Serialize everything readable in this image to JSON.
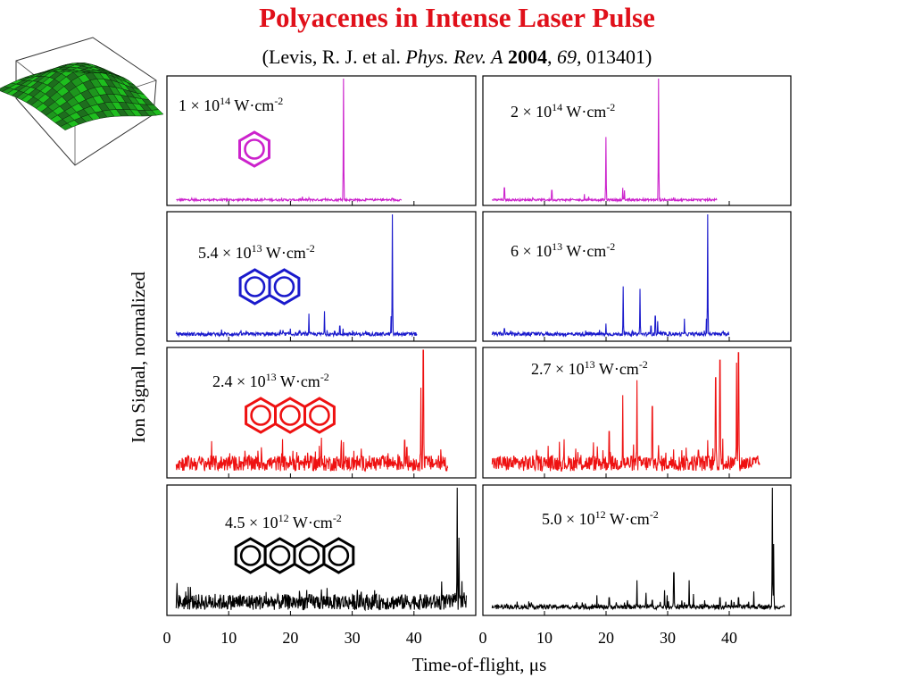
{
  "slide": {
    "title": "Polyacenes in Intense Laser Pulse",
    "citation": {
      "open": "(Levis, R. J. et al. ",
      "journal": "Phys. Rev. A",
      "year": "2004",
      "sep1": ", ",
      "volume": "69",
      "rest": ", 013401)"
    }
  },
  "chart_data": {
    "type": "line",
    "ylabel": "Ion Signal, normalized",
    "xlabel": "Time-of-flight, μs",
    "xticks": [
      "0",
      "10",
      "20",
      "30",
      "40"
    ],
    "xlim": [
      0,
      50
    ],
    "ylim": [
      0,
      1
    ],
    "grid": false,
    "molecules": [
      "benzene",
      "naphthalene",
      "anthracene",
      "tetracene"
    ],
    "panels": [
      {
        "row": 0,
        "col": 0,
        "color": "#cc22cc",
        "intensity": {
          "mantissa": "1",
          "exp": "14"
        },
        "rings": 1,
        "x_start": 1.5,
        "x_end": 38,
        "noise": 0.012,
        "baseline": 0.02,
        "peaks": [
          [
            28.6,
            1.0
          ],
          [
            23.0,
            0.04
          ],
          [
            23.3,
            0.03
          ]
        ]
      },
      {
        "row": 0,
        "col": 1,
        "color": "#cc22cc",
        "intensity": {
          "mantissa": "2",
          "exp": "14"
        },
        "rings": 1,
        "x_start": 1.5,
        "x_end": 38,
        "noise": 0.012,
        "baseline": 0.02,
        "peaks": [
          [
            28.5,
            1.0
          ],
          [
            20.0,
            0.53
          ],
          [
            3.5,
            0.12
          ],
          [
            11.2,
            0.1
          ],
          [
            16.5,
            0.07
          ],
          [
            17.2,
            0.05
          ],
          [
            22.7,
            0.12
          ],
          [
            23.0,
            0.1
          ]
        ]
      },
      {
        "row": 1,
        "col": 0,
        "color": "#1a1acc",
        "intensity": {
          "mantissa": "5.4",
          "exp": "13"
        },
        "rings": 2,
        "x_start": 1.5,
        "x_end": 40.5,
        "noise": 0.02,
        "baseline": 0.03,
        "peaks": [
          [
            36.5,
            1.0
          ],
          [
            36.3,
            0.18
          ],
          [
            23.0,
            0.2
          ],
          [
            25.5,
            0.22
          ],
          [
            28.0,
            0.1
          ],
          [
            28.5,
            0.08
          ],
          [
            20.0,
            0.08
          ],
          [
            32.7,
            0.05
          ]
        ]
      },
      {
        "row": 1,
        "col": 1,
        "color": "#1a1acc",
        "intensity": {
          "mantissa": "6",
          "exp": "13"
        },
        "rings": 2,
        "x_start": 1.5,
        "x_end": 40,
        "noise": 0.02,
        "baseline": 0.03,
        "peaks": [
          [
            36.5,
            1.0
          ],
          [
            36.3,
            0.16
          ],
          [
            22.8,
            0.42
          ],
          [
            25.5,
            0.4
          ],
          [
            28.0,
            0.18
          ],
          [
            28.4,
            0.14
          ],
          [
            32.7,
            0.16
          ],
          [
            20.0,
            0.12
          ],
          [
            3.5,
            0.08
          ],
          [
            27.3,
            0.1
          ]
        ]
      },
      {
        "row": 2,
        "col": 0,
        "color": "#ee1111",
        "intensity": {
          "mantissa": "2.4",
          "exp": "13"
        },
        "rings": 3,
        "x_start": 1.5,
        "x_end": 45.5,
        "noise": 0.09,
        "baseline": 0.07,
        "peaks": [
          [
            41.5,
            1.0
          ],
          [
            41.1,
            0.7
          ],
          [
            25.0,
            0.3
          ],
          [
            38.5,
            0.28
          ],
          [
            38.8,
            0.22
          ],
          [
            22.8,
            0.18
          ],
          [
            30.5,
            0.12
          ],
          [
            33.0,
            0.1
          ],
          [
            36.0,
            0.12
          ]
        ]
      },
      {
        "row": 2,
        "col": 1,
        "color": "#ee1111",
        "intensity": {
          "mantissa": "2.7",
          "exp": "13"
        },
        "rings": 3,
        "x_start": 1.5,
        "x_end": 45,
        "noise": 0.09,
        "baseline": 0.07,
        "peaks": [
          [
            41.5,
            0.98
          ],
          [
            41.2,
            0.9
          ],
          [
            38.5,
            0.92
          ],
          [
            37.8,
            0.78
          ],
          [
            36.5,
            0.28
          ],
          [
            35.0,
            0.2
          ],
          [
            33.0,
            0.22
          ],
          [
            32.3,
            0.2
          ],
          [
            29.7,
            0.18
          ],
          [
            28.5,
            0.24
          ],
          [
            27.5,
            0.55
          ],
          [
            25.0,
            0.76
          ],
          [
            22.7,
            0.64
          ],
          [
            20.5,
            0.35
          ],
          [
            19.5,
            0.2
          ],
          [
            34.0,
            0.15
          ]
        ]
      },
      {
        "row": 3,
        "col": 0,
        "color": "#000000",
        "intensity": {
          "mantissa": "4.5",
          "exp": "12"
        },
        "rings": 4,
        "x_start": 1.5,
        "x_end": 48.5,
        "noise": 0.09,
        "baseline": 0.06,
        "peaks": [
          [
            47.0,
            1.0
          ],
          [
            47.3,
            0.6
          ],
          [
            44.5,
            0.25
          ],
          [
            26.5,
            0.12
          ],
          [
            33.5,
            0.1
          ],
          [
            40.0,
            0.1
          ],
          [
            20.0,
            0.1
          ]
        ]
      },
      {
        "row": 3,
        "col": 1,
        "color": "#000000",
        "intensity": {
          "mantissa": "5.0",
          "exp": "12"
        },
        "rings": 4,
        "x_start": 1.5,
        "x_end": 49,
        "noise": 0.025,
        "baseline": 0.04,
        "peaks": [
          [
            47.0,
            1.0
          ],
          [
            47.2,
            0.55
          ],
          [
            18.5,
            0.14
          ],
          [
            20.5,
            0.12
          ],
          [
            25.0,
            0.26
          ],
          [
            26.5,
            0.16
          ],
          [
            29.5,
            0.18
          ],
          [
            29.9,
            0.14
          ],
          [
            31.0,
            0.32
          ],
          [
            33.5,
            0.26
          ],
          [
            34.2,
            0.15
          ],
          [
            36.0,
            0.1
          ],
          [
            38.5,
            0.12
          ],
          [
            41.5,
            0.12
          ],
          [
            44.0,
            0.17
          ],
          [
            23.5,
            0.1
          ],
          [
            27.5,
            0.1
          ]
        ]
      }
    ]
  }
}
